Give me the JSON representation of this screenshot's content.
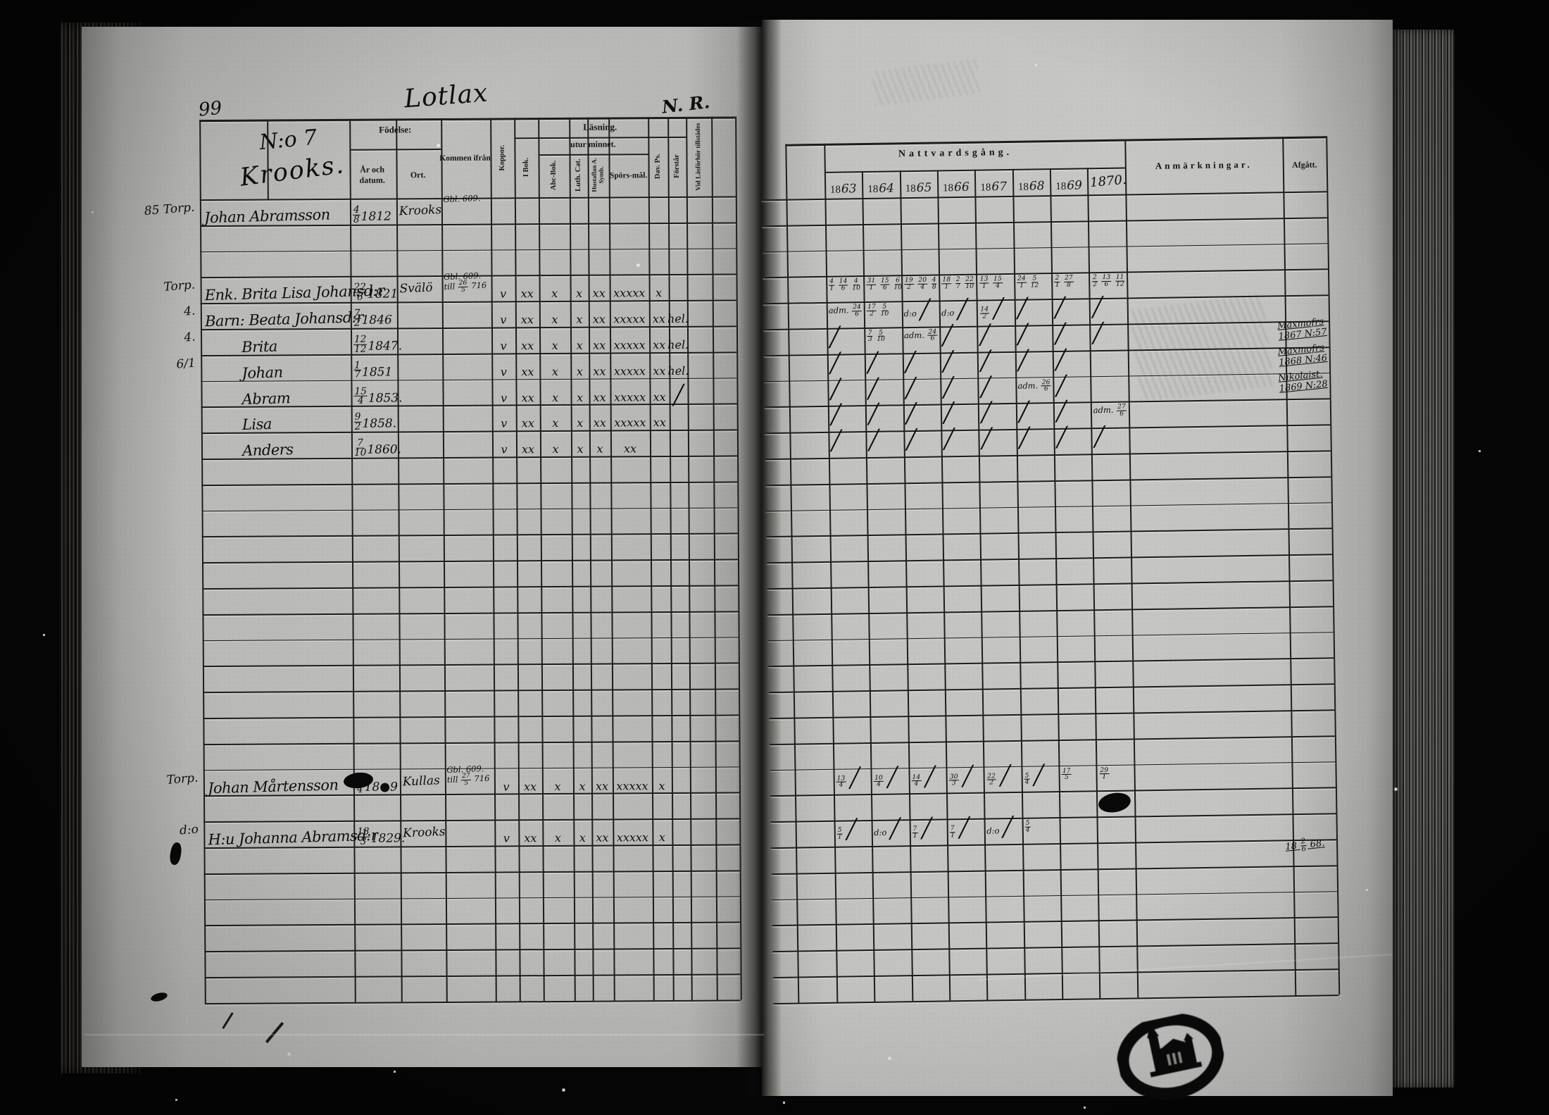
{
  "document": {
    "page_number": "99",
    "village_heading": "Lotlax",
    "corner_note": "N. R.",
    "record_number": "N:o 7",
    "record_place": "Krooks.",
    "left_table": {
      "header": {
        "birth": "Födelse:",
        "birth_date": "År och datum.",
        "birth_place": "Ort.",
        "come_from": "Kommen ifrån",
        "smallpox": "Koppor.",
        "in_book": "I Bok.",
        "reading": "Läsning.",
        "by_heart": "utur minnet.",
        "abc_book": "Abc-Bok.",
        "luther_cat": "Luth. Cat.",
        "hustavlan": "Hustaflan A. Symb.",
        "sporsmal": "Spörs-mål.",
        "david_psalms": "Dav. Ps.",
        "understands": "Förstår",
        "attends": "Vid Läsförhör tillstädes"
      },
      "rows": [
        {
          "row": 0,
          "margin": "85 Torp.",
          "name": "Johan Abramsson",
          "born": "4/8 1812",
          "ort": "Krooks",
          "from": "Gbl. 609.",
          "indent": false,
          "marks": [
            "",
            "",
            "",
            "",
            "",
            "",
            "",
            ""
          ]
        },
        {
          "row": 3,
          "margin": "Torp.",
          "name": "Enk. Brita Lisa Johansd:r",
          "born": "22/6 1821",
          "ort": "Svälö",
          "from": "Gbl. 609. till 26/5 716",
          "indent": false,
          "marks": [
            "v",
            "xx",
            "x",
            "x",
            "xx",
            "xxxxx",
            "x",
            ""
          ]
        },
        {
          "row": 4,
          "margin": "4.",
          "name": "Barn: Beata Johansd:r",
          "born": "7/2 1846",
          "ort": "",
          "from": "",
          "indent": false,
          "marks": [
            "v",
            "xx",
            "x",
            "x",
            "xx",
            "xxxxx",
            "xx",
            "hel."
          ]
        },
        {
          "row": 5,
          "margin": "4.",
          "name": "Brita",
          "born": "12/12 1847.",
          "ort": "",
          "from": "",
          "indent": true,
          "marks": [
            "v",
            "xx",
            "x",
            "x",
            "xx",
            "xxxxx",
            "xx",
            "hel."
          ]
        },
        {
          "row": 6,
          "margin": "6/1",
          "name": "Johan",
          "born": "1/7 1851",
          "ort": "",
          "from": "",
          "indent": true,
          "marks": [
            "v",
            "xx",
            "x",
            "x",
            "xx",
            "xxxxx",
            "xx",
            "hel."
          ]
        },
        {
          "row": 7,
          "margin": "",
          "name": "Abram",
          "born": "15/4 1853.",
          "ort": "",
          "from": "",
          "indent": true,
          "marks": [
            "v",
            "xx",
            "x",
            "x",
            "xx",
            "xxxxx",
            "xx",
            "/"
          ]
        },
        {
          "row": 8,
          "margin": "",
          "name": "Lisa",
          "born": "9/2 1858.",
          "ort": "",
          "from": "",
          "indent": true,
          "marks": [
            "v",
            "xx",
            "x",
            "x",
            "xx",
            "xxxxx",
            "xx",
            ""
          ]
        },
        {
          "row": 9,
          "margin": "",
          "name": "Anders",
          "born": "7/10 1860.",
          "ort": "",
          "from": "",
          "indent": true,
          "marks": [
            "v",
            "xx",
            "x",
            "x",
            "x",
            "xx",
            "",
            ""
          ]
        },
        {
          "row": 22,
          "margin": "Torp.",
          "name": "Johan Mårtensson",
          "born": "2/4 18●9",
          "ort": "Kullas",
          "from": "Gbl. 609. till 27/5 716",
          "indent": false,
          "marks": [
            "v",
            "xx",
            "x",
            "x",
            "xx",
            "xxxxx",
            "x",
            ""
          ]
        },
        {
          "row": 24,
          "margin": "d:o",
          "name": "H:u Johanna Abramsd:r",
          "born": "13/3 1829.",
          "ort": "Krooks",
          "from": "",
          "indent": false,
          "marks": [
            "v",
            "xx",
            "x",
            "x",
            "xx",
            "xxxxx",
            "x",
            ""
          ]
        }
      ]
    },
    "right_table": {
      "title": "Nattvardsgång.",
      "years": [
        {
          "printed": "18",
          "written": "63"
        },
        {
          "printed": "18",
          "written": "64"
        },
        {
          "printed": "18",
          "written": "65"
        },
        {
          "printed": "18",
          "written": "66"
        },
        {
          "printed": "18",
          "written": "67"
        },
        {
          "printed": "18",
          "written": "68"
        },
        {
          "printed": "18",
          "written": "69"
        }
      ],
      "extra_year": "1870.",
      "remarks_label": "Anmärkningar.",
      "departed_label": "Afgått.",
      "rows": [
        {
          "row": 3,
          "cells": [
            "4/1 14/6 4/10",
            "31/1 15/6 6/10",
            "19/2 20/4 4/8",
            "18/1 2/7 22/10",
            "13/1 15/4",
            "24/1 5/12",
            "2/1 27/8",
            "2/2 13/6 11/12"
          ],
          "afgatt": ""
        },
        {
          "row": 4,
          "cells": [
            "adm. 24/6",
            "17/2 5/10",
            "d:o ╱",
            "d:o ╱",
            "14/2 ╱",
            "╱",
            "╱",
            "╱"
          ],
          "afgatt": ""
        },
        {
          "row": 5,
          "cells": [
            "╱",
            "7/3 5/10",
            "adm. 24/6",
            "╱",
            "╱",
            "╱",
            "╱",
            "╱"
          ],
          "afgatt": "Maxmofrs\n1867 N:57"
        },
        {
          "row": 6,
          "cells": [
            "╱",
            "╱",
            "╱",
            "╱",
            "╱",
            "╱",
            "╱",
            ""
          ],
          "afgatt": "Maxmofrs\n1868 N:46"
        },
        {
          "row": 7,
          "cells": [
            "╱",
            "╱",
            "╱",
            "╱",
            "╱",
            "adm. 26/6",
            "╱",
            ""
          ],
          "afgatt": "Nikolaist.\n1869 N:28"
        },
        {
          "row": 8,
          "cells": [
            "╱",
            "╱",
            "╱",
            "╱",
            "╱",
            "╱",
            "╱",
            "adm. 27/6"
          ],
          "afgatt": ""
        },
        {
          "row": 9,
          "cells": [
            "╱",
            "╱",
            "╱",
            "╱",
            "╱",
            "╱",
            "╱",
            "╱"
          ],
          "afgatt": ""
        },
        {
          "row": 22,
          "cells": [
            "13/4 ╱",
            "10/4 ╱",
            "14/4 ╱",
            "30/3 ╱",
            "22/2 ╱",
            "5/4 ╱",
            "17/5",
            "29/1"
          ],
          "afgatt": ""
        },
        {
          "row": 24,
          "cells": [
            "5/1 ╱",
            "d:o ╱",
            "7/1 ╱",
            "7/1 ╱",
            "d:o ╱",
            "5/4",
            "",
            ""
          ],
          "afgatt": ""
        },
        {
          "row": 25,
          "cells": [
            "",
            "",
            "",
            "",
            "",
            "",
            "",
            ""
          ],
          "afgatt": "18 2/6 68."
        }
      ]
    }
  }
}
